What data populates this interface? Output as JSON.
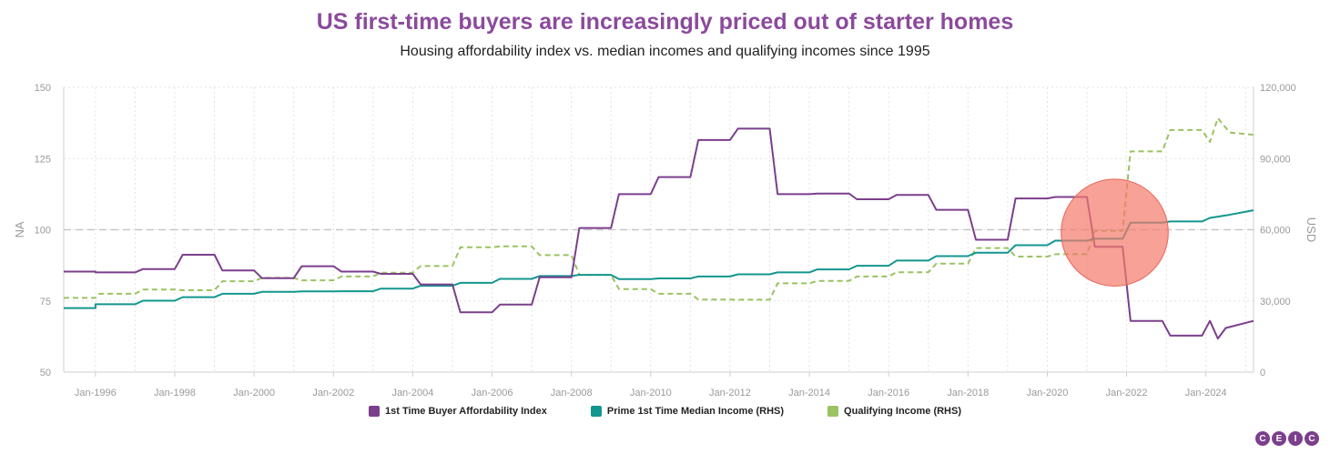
{
  "header": {
    "title": "US first-time buyers are increasingly priced out of starter homes",
    "subtitle": "Housing affordability index vs. median incomes and qualifying incomes since 1995"
  },
  "colors": {
    "title": "#8b4a9c",
    "affordability": "#7b3f8c",
    "median_income": "#13968f",
    "qualifying_income": "#9bc263",
    "highlight": "#f4796b",
    "grid": "#e3e3e3",
    "axis_text": "#9a9a9a"
  },
  "logo": {
    "letters": [
      "C",
      "E",
      "I",
      "C"
    ],
    "colors": [
      "#7b3f8c",
      "#7b3f8c",
      "#7b3f8c",
      "#7b3f8c"
    ]
  },
  "chart_data": {
    "type": "line",
    "xlim": [
      1995.2,
      2025.2
    ],
    "x_ticks": [
      1996,
      1998,
      2000,
      2002,
      2004,
      2006,
      2008,
      2010,
      2012,
      2014,
      2016,
      2018,
      2020,
      2022,
      2024
    ],
    "x_tick_labels": [
      "Jan-1996",
      "Jan-1998",
      "Jan-2000",
      "Jan-2002",
      "Jan-2004",
      "Jan-2006",
      "Jan-2008",
      "Jan-2010",
      "Jan-2012",
      "Jan-2014",
      "Jan-2016",
      "Jan-2018",
      "Jan-2020",
      "Jan-2022",
      "Jan-2024"
    ],
    "y_left": {
      "label": "NA",
      "range": [
        50,
        150
      ],
      "ticks": [
        50,
        75,
        100,
        125,
        150
      ],
      "tick_labels": [
        "50",
        "75",
        "100",
        "125",
        "150"
      ]
    },
    "y_right": {
      "label": "USD",
      "range": [
        0,
        120000
      ],
      "ticks": [
        0,
        30000,
        60000,
        90000,
        120000
      ],
      "tick_labels": [
        "0",
        "30,000",
        "60,000",
        "90,000",
        "120,000"
      ]
    },
    "reference_line": {
      "axis": "left",
      "value": 100,
      "style": "dashed"
    },
    "highlight_circle": {
      "x": 2021.7,
      "y_left": 99,
      "radius_x_years": 1.35
    },
    "series": [
      {
        "name": "1st Time Buyer Affordability Index",
        "axis": "left",
        "style": "solid",
        "color_key": "affordability",
        "points": [
          [
            1995.2,
            85.3
          ],
          [
            1996.0,
            85.3
          ],
          [
            1996.0,
            85.0
          ],
          [
            1997.0,
            85.0
          ],
          [
            1997.2,
            86.2
          ],
          [
            1998.0,
            86.2
          ],
          [
            1998.2,
            91.2
          ],
          [
            1999.0,
            91.2
          ],
          [
            1999.2,
            85.7
          ],
          [
            2000.0,
            85.7
          ],
          [
            2000.2,
            83.0
          ],
          [
            2001.0,
            83.0
          ],
          [
            2001.2,
            87.2
          ],
          [
            2002.0,
            87.2
          ],
          [
            2002.2,
            85.3
          ],
          [
            2003.0,
            85.3
          ],
          [
            2003.2,
            84.5
          ],
          [
            2004.0,
            84.5
          ],
          [
            2004.2,
            80.8
          ],
          [
            2005.0,
            80.8
          ],
          [
            2005.2,
            71.0
          ],
          [
            2006.0,
            71.0
          ],
          [
            2006.2,
            73.7
          ],
          [
            2007.0,
            73.7
          ],
          [
            2007.2,
            83.3
          ],
          [
            2008.0,
            83.3
          ],
          [
            2008.2,
            100.6
          ],
          [
            2009.0,
            100.6
          ],
          [
            2009.2,
            112.5
          ],
          [
            2010.0,
            112.5
          ],
          [
            2010.2,
            118.5
          ],
          [
            2011.0,
            118.5
          ],
          [
            2011.2,
            131.5
          ],
          [
            2012.0,
            131.5
          ],
          [
            2012.2,
            135.5
          ],
          [
            2013.0,
            135.5
          ],
          [
            2013.2,
            112.5
          ],
          [
            2014.0,
            112.5
          ],
          [
            2014.2,
            112.7
          ],
          [
            2015.0,
            112.7
          ],
          [
            2015.2,
            110.7
          ],
          [
            2016.0,
            110.7
          ],
          [
            2016.2,
            112.2
          ],
          [
            2017.0,
            112.2
          ],
          [
            2017.2,
            107.0
          ],
          [
            2018.0,
            107.0
          ],
          [
            2018.2,
            96.5
          ],
          [
            2019.0,
            96.5
          ],
          [
            2019.2,
            111.0
          ],
          [
            2020.0,
            111.0
          ],
          [
            2020.2,
            111.5
          ],
          [
            2021.0,
            111.5
          ],
          [
            2021.2,
            94.0
          ],
          [
            2021.9,
            94.0
          ],
          [
            2022.1,
            68.0
          ],
          [
            2022.9,
            68.0
          ],
          [
            2023.1,
            62.8
          ],
          [
            2023.9,
            62.8
          ],
          [
            2024.1,
            68.0
          ],
          [
            2024.3,
            61.8
          ],
          [
            2024.5,
            65.5
          ],
          [
            2025.2,
            68.0
          ]
        ]
      },
      {
        "name": "Prime 1st Time Median Income (RHS)",
        "axis": "right",
        "style": "solid",
        "color_key": "median_income",
        "points": [
          [
            1995.2,
            27000
          ],
          [
            1996.0,
            27000
          ],
          [
            1996.0,
            28600
          ],
          [
            1997.0,
            28600
          ],
          [
            1997.2,
            30100
          ],
          [
            1998.0,
            30100
          ],
          [
            1998.2,
            31600
          ],
          [
            1999.0,
            31600
          ],
          [
            1999.2,
            33000
          ],
          [
            2000.0,
            33000
          ],
          [
            2000.2,
            33800
          ],
          [
            2001.0,
            33800
          ],
          [
            2001.2,
            34000
          ],
          [
            2002.0,
            34000
          ],
          [
            2002.2,
            34100
          ],
          [
            2003.0,
            34100
          ],
          [
            2003.2,
            35200
          ],
          [
            2004.0,
            35200
          ],
          [
            2004.2,
            36400
          ],
          [
            2005.0,
            36400
          ],
          [
            2005.2,
            37600
          ],
          [
            2006.0,
            37600
          ],
          [
            2006.2,
            39300
          ],
          [
            2007.0,
            39300
          ],
          [
            2007.2,
            40500
          ],
          [
            2008.0,
            40500
          ],
          [
            2008.2,
            41000
          ],
          [
            2009.0,
            41000
          ],
          [
            2009.2,
            39200
          ],
          [
            2010.0,
            39200
          ],
          [
            2010.2,
            39500
          ],
          [
            2011.0,
            39500
          ],
          [
            2011.2,
            40300
          ],
          [
            2012.0,
            40300
          ],
          [
            2012.2,
            41200
          ],
          [
            2013.0,
            41200
          ],
          [
            2013.2,
            42000
          ],
          [
            2014.0,
            42000
          ],
          [
            2014.2,
            43300
          ],
          [
            2015.0,
            43300
          ],
          [
            2015.2,
            44800
          ],
          [
            2016.0,
            44800
          ],
          [
            2016.2,
            47000
          ],
          [
            2017.0,
            47000
          ],
          [
            2017.2,
            48900
          ],
          [
            2018.0,
            48900
          ],
          [
            2018.2,
            50300
          ],
          [
            2019.0,
            50300
          ],
          [
            2019.2,
            53500
          ],
          [
            2020.0,
            53500
          ],
          [
            2020.2,
            55400
          ],
          [
            2021.0,
            55400
          ],
          [
            2021.2,
            56200
          ],
          [
            2021.9,
            56200
          ],
          [
            2022.1,
            63000
          ],
          [
            2022.9,
            63000
          ],
          [
            2023.1,
            63500
          ],
          [
            2023.9,
            63500
          ],
          [
            2024.1,
            65000
          ],
          [
            2024.5,
            66000
          ],
          [
            2025.2,
            68200
          ]
        ]
      },
      {
        "name": "Qualifying Income (RHS)",
        "axis": "right",
        "style": "dashed",
        "color_key": "qualifying_income",
        "points": [
          [
            1995.2,
            31300
          ],
          [
            1996.0,
            31300
          ],
          [
            1996.1,
            33000
          ],
          [
            1997.0,
            33000
          ],
          [
            1997.2,
            34800
          ],
          [
            1998.0,
            34800
          ],
          [
            1998.2,
            34500
          ],
          [
            1999.0,
            34500
          ],
          [
            1999.2,
            38300
          ],
          [
            2000.0,
            38300
          ],
          [
            2000.2,
            39700
          ],
          [
            2001.0,
            39700
          ],
          [
            2001.2,
            38700
          ],
          [
            2002.0,
            38700
          ],
          [
            2002.2,
            40300
          ],
          [
            2003.0,
            40300
          ],
          [
            2003.2,
            41900
          ],
          [
            2004.0,
            41900
          ],
          [
            2004.2,
            44700
          ],
          [
            2005.0,
            44700
          ],
          [
            2005.2,
            52600
          ],
          [
            2006.0,
            52600
          ],
          [
            2006.2,
            53000
          ],
          [
            2007.0,
            53000
          ],
          [
            2007.2,
            49300
          ],
          [
            2008.0,
            49300
          ],
          [
            2008.2,
            41000
          ],
          [
            2009.0,
            41000
          ],
          [
            2009.2,
            35000
          ],
          [
            2010.0,
            35000
          ],
          [
            2010.2,
            33000
          ],
          [
            2011.0,
            33000
          ],
          [
            2011.2,
            30600
          ],
          [
            2012.0,
            30600
          ],
          [
            2012.2,
            30500
          ],
          [
            2013.0,
            30500
          ],
          [
            2013.2,
            37400
          ],
          [
            2014.0,
            37400
          ],
          [
            2014.2,
            38400
          ],
          [
            2015.0,
            38400
          ],
          [
            2015.2,
            40300
          ],
          [
            2016.0,
            40300
          ],
          [
            2016.2,
            42100
          ],
          [
            2017.0,
            42100
          ],
          [
            2017.2,
            45700
          ],
          [
            2018.0,
            45700
          ],
          [
            2018.2,
            52300
          ],
          [
            2019.0,
            52300
          ],
          [
            2019.2,
            48700
          ],
          [
            2020.0,
            48700
          ],
          [
            2020.2,
            49700
          ],
          [
            2021.0,
            49700
          ],
          [
            2021.2,
            59500
          ],
          [
            2021.9,
            59500
          ],
          [
            2022.1,
            93000
          ],
          [
            2022.9,
            93000
          ],
          [
            2023.1,
            102000
          ],
          [
            2023.9,
            102000
          ],
          [
            2024.1,
            97000
          ],
          [
            2024.3,
            107000
          ],
          [
            2024.6,
            101000
          ],
          [
            2025.2,
            100000
          ]
        ]
      }
    ]
  }
}
